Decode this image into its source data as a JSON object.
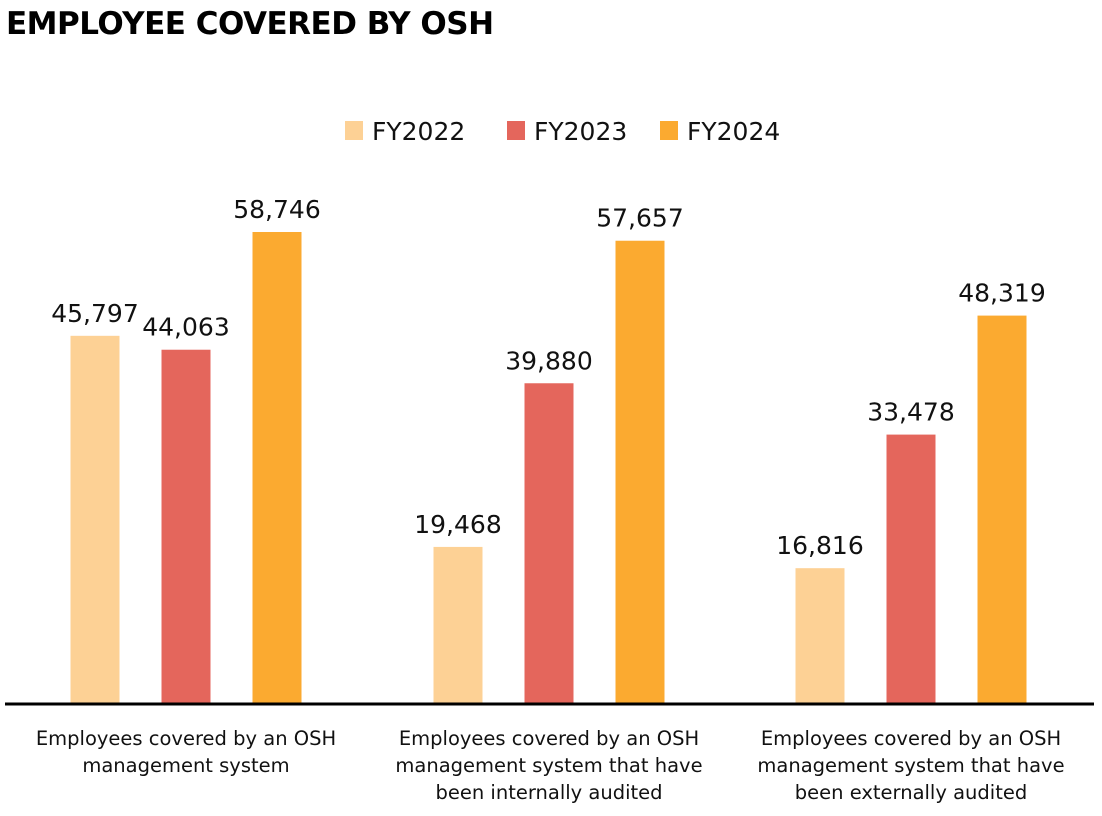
{
  "title": "EMPLOYEE COVERED BY OSH",
  "chart_data": {
    "type": "bar",
    "title": "EMPLOYEE COVERED BY OSH",
    "xlabel": "",
    "ylabel": "",
    "ylim": [
      0,
      60000
    ],
    "grid": false,
    "legend_position": "top-center",
    "categories": [
      "Employees covered by an OSH management system",
      "Employees covered by an OSH management system that have been internally audited",
      "Employees covered by an OSH management system that have been externally audited"
    ],
    "category_lines": [
      [
        "Employees covered by an OSH",
        "management system"
      ],
      [
        "Employees covered by an OSH",
        "management system that have",
        "been internally audited"
      ],
      [
        "Employees covered by an OSH",
        "management system that have",
        "been externally audited"
      ]
    ],
    "series": [
      {
        "name": "FY2022",
        "color": "#fdd195",
        "values": [
          45797,
          19468,
          16816
        ],
        "labels": [
          "45,797",
          "19,468",
          "16,816"
        ]
      },
      {
        "name": "FY2023",
        "color": "#e4665c",
        "values": [
          44063,
          39880,
          33478
        ],
        "labels": [
          "44,063",
          "39,880",
          "33,478"
        ]
      },
      {
        "name": "FY2024",
        "color": "#fbaa30",
        "values": [
          58746,
          57657,
          48319
        ],
        "labels": [
          "58,746",
          "57,657",
          "48,319"
        ]
      }
    ]
  }
}
